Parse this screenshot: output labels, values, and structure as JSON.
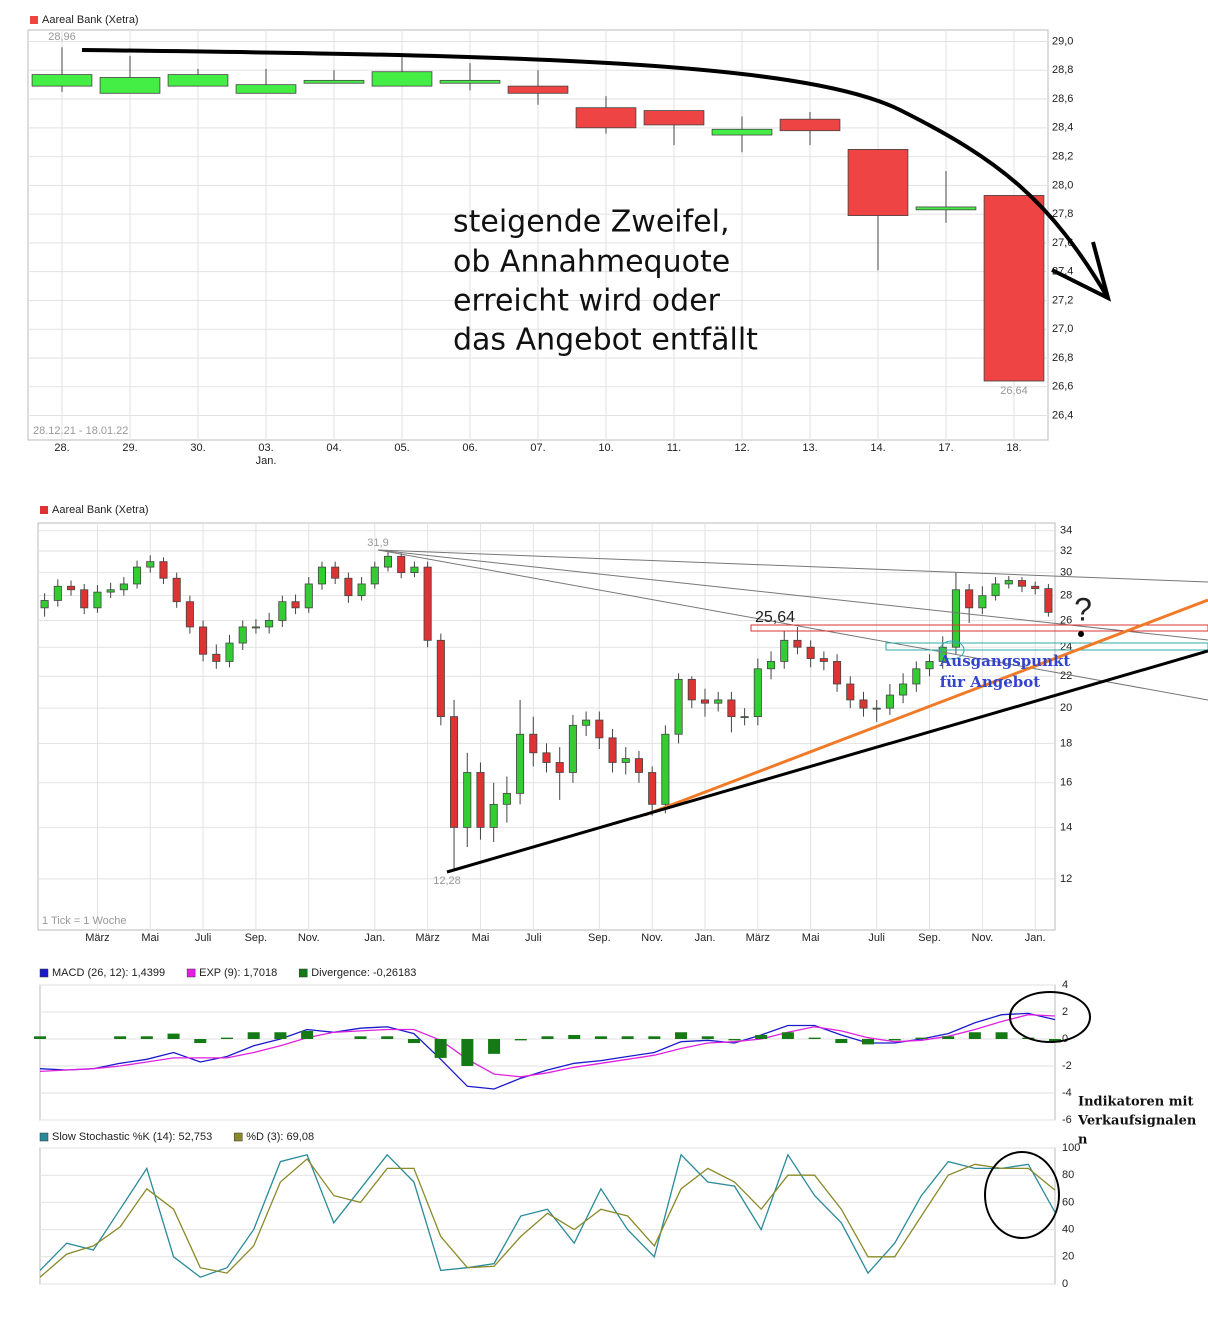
{
  "chart_data": [
    {
      "type": "candlestick",
      "legend": "Aareal Bank (Xetra)",
      "up_color": "#44ee44",
      "down_color": "#ee4444",
      "grid": true,
      "categories": [
        "28.",
        "29.",
        "30.",
        "03.",
        "04.",
        "05.",
        "06.",
        "07.",
        "10.",
        "11.",
        "12.",
        "13.",
        "14.",
        "17.",
        "18."
      ],
      "month_labels": [
        null,
        null,
        null,
        "Jan.",
        null,
        null,
        null,
        null,
        null,
        null,
        null,
        null,
        null,
        null,
        null
      ],
      "open": [
        28.69,
        28.64,
        28.69,
        28.64,
        28.71,
        28.69,
        28.71,
        28.69,
        28.54,
        28.52,
        28.35,
        28.46,
        28.25,
        27.83,
        27.93
      ],
      "high": [
        28.96,
        28.9,
        28.81,
        28.81,
        28.8,
        28.89,
        28.85,
        28.8,
        28.62,
        28.52,
        28.48,
        28.51,
        28.25,
        28.1,
        27.93
      ],
      "low": [
        28.65,
        28.64,
        28.69,
        28.64,
        28.71,
        28.69,
        28.66,
        28.56,
        28.36,
        28.28,
        28.23,
        28.28,
        27.41,
        27.74,
        26.64
      ],
      "close": [
        28.77,
        28.75,
        28.77,
        28.7,
        28.73,
        28.79,
        28.73,
        28.64,
        28.4,
        28.42,
        28.39,
        28.38,
        27.79,
        27.85,
        26.64
      ],
      "ylim": [
        26.23,
        29.08
      ],
      "yticks": [
        {
          "value": 26.4,
          "label": "26,4"
        },
        {
          "value": 26.6,
          "label": "26,6"
        },
        {
          "value": 26.8,
          "label": "26,8"
        },
        {
          "value": 27.0,
          "label": "27,0"
        },
        {
          "value": 27.2,
          "label": "27,2"
        },
        {
          "value": 27.4,
          "label": "27,4"
        },
        {
          "value": 27.6,
          "label": "27,6"
        },
        {
          "value": 27.8,
          "label": "27,8"
        },
        {
          "value": 28.0,
          "label": "28,0"
        },
        {
          "value": 28.2,
          "label": "28,2"
        },
        {
          "value": 28.4,
          "label": "28,4"
        },
        {
          "value": 28.6,
          "label": "28,6"
        },
        {
          "value": 28.8,
          "label": "28,8"
        },
        {
          "value": 29.0,
          "label": "29,0"
        }
      ],
      "annotations": {
        "high_label": "28,96",
        "low_label": "26,64",
        "date_range": "28.12.21 - 18.01.22"
      },
      "note_lines": [
        "steigende Zweifel,",
        "ob Annahmequote",
        "erreicht wird oder",
        "das Angebot entfällt"
      ]
    },
    {
      "type": "candlestick",
      "legend": "Aareal Bank (Xetra)",
      "up_color": "#33cc33",
      "down_color": "#dd3333",
      "grid": true,
      "log": true,
      "categories": [
        null,
        null,
        null,
        null,
        "März",
        null,
        null,
        null,
        "Mai",
        null,
        null,
        null,
        "Juli",
        null,
        null,
        null,
        "Sep.",
        null,
        null,
        null,
        "Nov.",
        null,
        null,
        null,
        null,
        "Jan.",
        null,
        null,
        null,
        "März",
        null,
        null,
        null,
        "Mai",
        null,
        null,
        null,
        "Juli",
        null,
        null,
        null,
        null,
        "Sep.",
        null,
        null,
        null,
        "Nov.",
        null,
        null,
        null,
        "Jan.",
        null,
        null,
        null,
        "März",
        null,
        null,
        null,
        "Mai",
        null,
        null,
        null,
        null,
        "Juli",
        null,
        null,
        null,
        "Sep.",
        null,
        null,
        null,
        "Nov.",
        null,
        null,
        null,
        "Jan.",
        null
      ],
      "open": [
        27.0,
        27.6,
        28.8,
        28.5,
        27.0,
        28.3,
        28.5,
        29.0,
        30.5,
        31.0,
        29.5,
        27.5,
        25.5,
        23.5,
        23.0,
        24.3,
        25.5,
        25.5,
        26.0,
        27.5,
        27.0,
        29.0,
        30.5,
        29.5,
        28.0,
        29.0,
        30.5,
        31.5,
        30.0,
        30.5,
        24.5,
        19.5,
        14.0,
        16.5,
        14.0,
        15.0,
        15.5,
        18.5,
        17.5,
        17.0,
        16.5,
        19.0,
        19.3,
        18.3,
        17.0,
        17.2,
        16.5,
        15.0,
        18.5,
        21.8,
        20.5,
        20.3,
        20.5,
        19.5,
        19.5,
        22.5,
        23.0,
        24.5,
        24.0,
        23.2,
        23.0,
        21.5,
        20.5,
        20.0,
        20.0,
        20.8,
        21.5,
        22.5,
        23.0,
        24.0,
        28.5,
        27.0,
        28.0,
        29.0,
        29.3,
        28.8,
        28.6
      ],
      "high": [
        28.2,
        29.4,
        29.3,
        29.0,
        28.9,
        29.1,
        29.6,
        31.1,
        31.6,
        31.4,
        30.0,
        28.0,
        26.0,
        24.2,
        24.9,
        26.0,
        26.1,
        26.6,
        28.0,
        28.1,
        29.6,
        31.0,
        31.0,
        30.0,
        29.6,
        31.0,
        31.9,
        31.8,
        31.0,
        31.0,
        25.0,
        20.5,
        17.5,
        17.0,
        16.0,
        16.3,
        20.5,
        19.5,
        18.0,
        17.8,
        19.6,
        19.8,
        19.8,
        18.8,
        17.8,
        17.6,
        16.8,
        19.0,
        22.2,
        22.0,
        21.2,
        21.0,
        21.0,
        20.0,
        23.2,
        23.7,
        25.2,
        25.5,
        24.5,
        23.7,
        23.5,
        22.0,
        21.0,
        20.5,
        21.5,
        22.2,
        23.0,
        23.5,
        24.8,
        30.0,
        29.0,
        28.8,
        29.6,
        29.7,
        29.6,
        29.2,
        29.0
      ],
      "low": [
        26.3,
        27.1,
        28.0,
        26.5,
        26.6,
        27.8,
        28.0,
        28.6,
        30.0,
        29.0,
        27.0,
        25.0,
        23.0,
        22.5,
        22.6,
        23.8,
        25.0,
        25.0,
        25.5,
        26.5,
        26.6,
        28.5,
        29.0,
        27.4,
        27.6,
        28.6,
        30.1,
        29.5,
        29.6,
        24.0,
        19.0,
        12.28,
        13.2,
        13.5,
        13.4,
        14.2,
        15.0,
        16.8,
        16.5,
        15.2,
        16.0,
        18.4,
        17.7,
        16.5,
        16.4,
        16.0,
        14.5,
        14.6,
        18.0,
        20.0,
        19.5,
        19.8,
        18.6,
        19.0,
        19.0,
        21.8,
        22.5,
        23.5,
        22.6,
        22.4,
        21.0,
        20.0,
        19.5,
        19.2,
        19.6,
        20.3,
        21.0,
        22.0,
        22.5,
        23.5,
        25.8,
        26.5,
        27.6,
        28.6,
        28.3,
        28.1,
        26.3
      ],
      "close": [
        27.6,
        28.8,
        28.5,
        27.0,
        28.3,
        28.5,
        29.0,
        30.5,
        31.0,
        29.5,
        27.5,
        25.5,
        23.5,
        23.0,
        24.3,
        25.5,
        25.5,
        26.0,
        27.5,
        27.0,
        29.0,
        30.5,
        29.5,
        28.0,
        29.0,
        30.5,
        31.5,
        30.0,
        30.5,
        24.5,
        19.5,
        14.0,
        16.5,
        14.0,
        15.0,
        15.5,
        18.5,
        17.5,
        17.0,
        16.5,
        19.0,
        19.3,
        18.3,
        17.0,
        17.2,
        16.5,
        15.0,
        18.5,
        21.8,
        20.5,
        20.3,
        20.5,
        19.5,
        19.5,
        22.5,
        23.0,
        24.5,
        24.0,
        23.2,
        23.0,
        21.5,
        20.5,
        20.0,
        20.0,
        20.8,
        21.5,
        22.5,
        23.0,
        24.0,
        28.5,
        27.0,
        28.0,
        29.0,
        29.3,
        28.8,
        28.6,
        26.64
      ],
      "ylim": [
        10.3,
        34.8
      ],
      "yticks": [
        12,
        14,
        16,
        18,
        20,
        22,
        24,
        26,
        28,
        30,
        32,
        34
      ],
      "annotations": {
        "high_label": "31,9",
        "low_label": "12,28",
        "level_label": "25,64",
        "tick_note": "1 Tick = 1 Woche",
        "question": "?",
        "start_note": [
          "Ausgangspunkt",
          "für Angebot"
        ]
      }
    },
    {
      "type": "line",
      "grid": true,
      "series": [
        {
          "name": "MACD (26, 12): 1,4399",
          "color": "#1a1acc",
          "values": [
            -2.2,
            -2.3,
            -2.2,
            -1.8,
            -1.5,
            -1.0,
            -1.7,
            -1.3,
            -0.5,
            0,
            0.7,
            0.5,
            0.8,
            0.9,
            0.4,
            -1.5,
            -3.5,
            -3.7,
            -2.9,
            -2.3,
            -1.8,
            -1.6,
            -1.3,
            -1.0,
            -0.2,
            -0.1,
            -0.3,
            0.3,
            1.0,
            1.0,
            0.3,
            -0.3,
            -0.3,
            0,
            0.4,
            1.2,
            1.8,
            1.9,
            1.4399
          ]
        },
        {
          "name": "EXP (9): 1,7018",
          "color": "#e022e0",
          "values": [
            -2.4,
            -2.3,
            -2.2,
            -2.0,
            -1.7,
            -1.4,
            -1.4,
            -1.4,
            -1.0,
            -0.5,
            0.1,
            0.5,
            0.6,
            0.7,
            0.7,
            -0.1,
            -1.5,
            -2.6,
            -2.8,
            -2.5,
            -2.1,
            -1.8,
            -1.5,
            -1.2,
            -0.7,
            -0.3,
            -0.2,
            0.0,
            0.5,
            0.9,
            0.6,
            0.1,
            -0.2,
            -0.1,
            0.2,
            0.7,
            1.3,
            1.8,
            1.7018
          ]
        },
        {
          "name": "Divergence: -0,26183",
          "color": "#157a15",
          "style": "bar",
          "values": [
            0.2,
            0,
            0,
            0.2,
            0.2,
            0.4,
            -0.3,
            0.1,
            0.5,
            0.5,
            0.6,
            0,
            0.2,
            0.2,
            -0.3,
            -1.4,
            -2.0,
            -1.1,
            -0.1,
            0.2,
            0.3,
            0.2,
            0.2,
            0.2,
            0.5,
            0.2,
            -0.1,
            0.3,
            0.5,
            0.1,
            -0.3,
            -0.4,
            -0.1,
            0.1,
            0.2,
            0.5,
            0.5,
            0.1,
            -0.26183
          ]
        }
      ],
      "ylim": [
        -6,
        4
      ],
      "yticks": [
        -6,
        -4,
        -2,
        0,
        2,
        4
      ]
    },
    {
      "type": "line",
      "grid": true,
      "series": [
        {
          "name": "Slow Stochastic %K (14): 52,753",
          "color": "#2a8a9a",
          "values": [
            10,
            30,
            25,
            55,
            85,
            20,
            5,
            12,
            40,
            90,
            95,
            45,
            70,
            95,
            75,
            10,
            12,
            15,
            50,
            55,
            30,
            70,
            40,
            20,
            95,
            75,
            72,
            40,
            95,
            65,
            45,
            8,
            30,
            65,
            90,
            85,
            85,
            88,
            52.753
          ]
        },
        {
          "name": "%D (3): 69,08",
          "color": "#8a8a2a",
          "values": [
            5,
            22,
            28,
            42,
            70,
            55,
            12,
            8,
            28,
            75,
            92,
            65,
            60,
            85,
            85,
            35,
            12,
            13,
            35,
            52,
            40,
            55,
            50,
            28,
            70,
            85,
            75,
            55,
            80,
            80,
            55,
            20,
            20,
            50,
            80,
            88,
            85,
            85,
            69.08
          ]
        }
      ],
      "ylim": [
        0,
        100
      ],
      "yticks": [
        0,
        20,
        40,
        60,
        80,
        100
      ],
      "annotation_lines": [
        "Indikatoren mit",
        "Verkaufsignalen",
        "n"
      ]
    }
  ]
}
